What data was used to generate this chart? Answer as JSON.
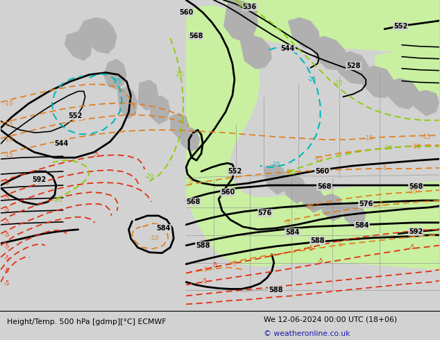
{
  "title_left": "Height/Temp. 500 hPa [gdmp][°C] ECMWF",
  "title_right": "We 12-06-2024 00:00 UTC (18+06)",
  "copyright": "© weatheronline.co.uk",
  "bg_color": "#d2d2d2",
  "green_color": "#c8f0a0",
  "gray_land": "#b0b0b0",
  "orange": "#e08020",
  "red": "#e03010",
  "cyan": "#00b8b8",
  "lime": "#88cc00"
}
